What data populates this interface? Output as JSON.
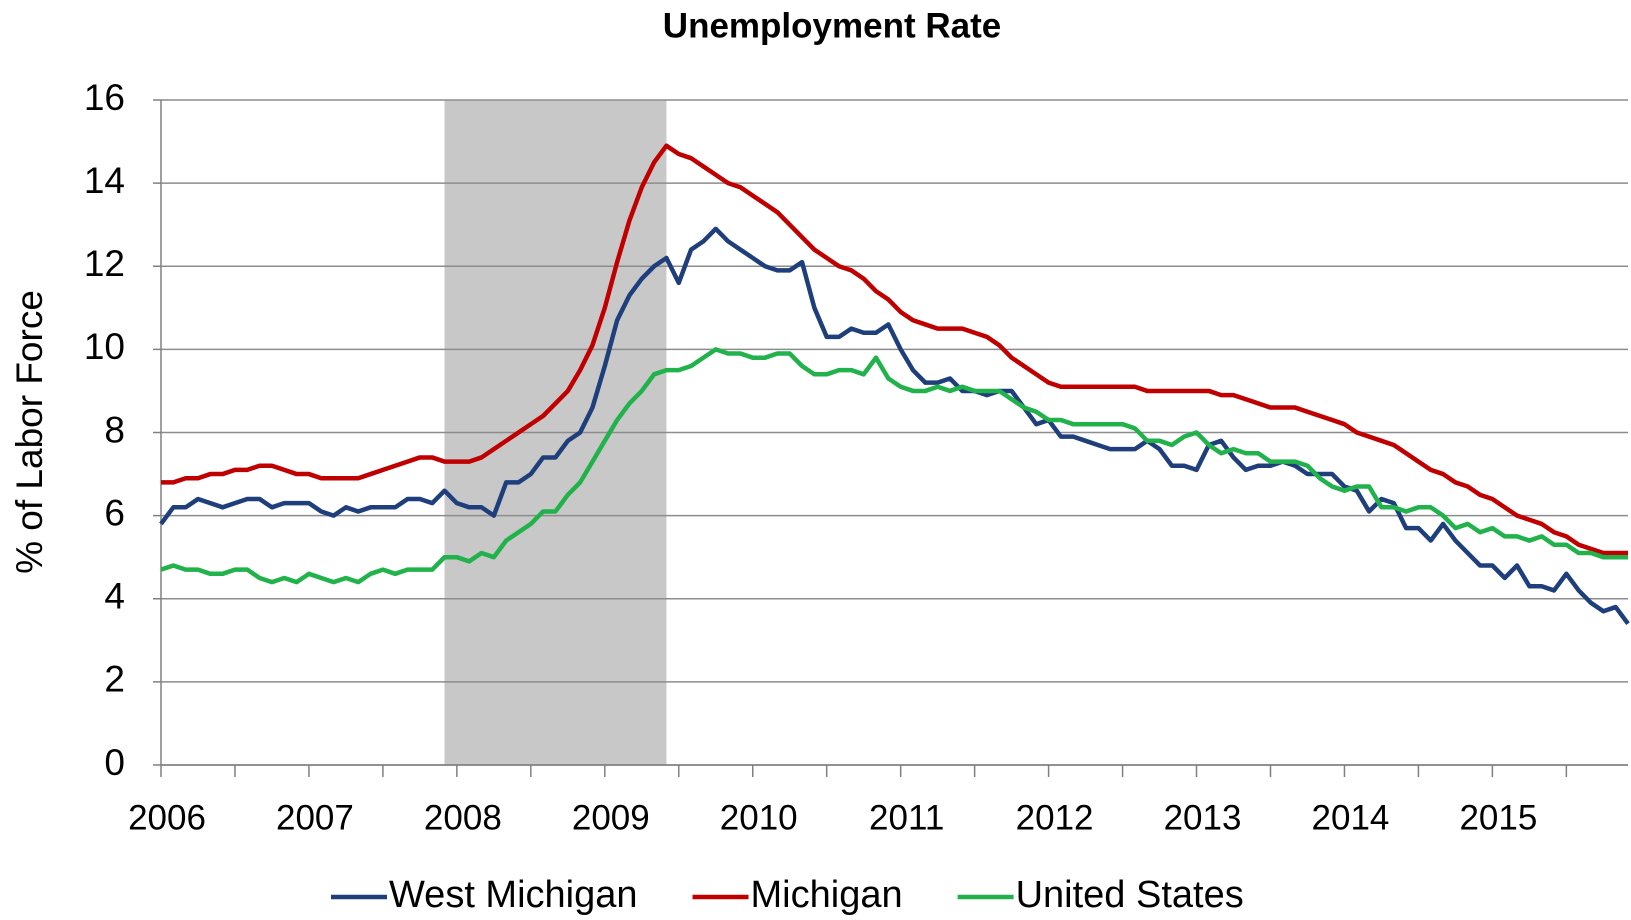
{
  "chart_data": {
    "type": "line",
    "title": "Unemployment Rate",
    "y_label": "% of Labor Force",
    "categories": [
      "2006",
      null,
      null,
      null,
      null,
      null,
      null,
      null,
      null,
      null,
      null,
      null,
      "2007",
      null,
      null,
      null,
      null,
      null,
      null,
      null,
      null,
      null,
      null,
      null,
      "2008",
      null,
      null,
      null,
      null,
      null,
      null,
      null,
      null,
      null,
      null,
      null,
      "2009",
      null,
      null,
      null,
      null,
      null,
      null,
      null,
      null,
      null,
      null,
      null,
      "2010",
      null,
      null,
      null,
      null,
      null,
      null,
      null,
      null,
      null,
      null,
      null,
      "2011",
      null,
      null,
      null,
      null,
      null,
      null,
      null,
      null,
      null,
      null,
      null,
      "2012",
      null,
      null,
      null,
      null,
      null,
      null,
      null,
      null,
      null,
      null,
      null,
      "2013",
      null,
      null,
      null,
      null,
      null,
      null,
      null,
      null,
      null,
      null,
      null,
      "2014",
      null,
      null,
      null,
      null,
      null,
      null,
      null,
      null,
      null,
      null,
      null,
      "2015",
      null,
      null,
      null,
      null,
      null,
      null,
      null,
      null,
      null,
      null,
      null
    ],
    "series": [
      {
        "name": "West Michigan",
        "color": "#1f3f7c",
        "values": [
          5.8,
          6.2,
          6.2,
          6.4,
          6.3,
          6.2,
          6.3,
          6.4,
          6.4,
          6.2,
          6.3,
          6.3,
          6.3,
          6.1,
          6.0,
          6.2,
          6.1,
          6.2,
          6.2,
          6.2,
          6.4,
          6.4,
          6.3,
          6.6,
          6.3,
          6.2,
          6.2,
          6.0,
          6.8,
          6.8,
          7.0,
          7.4,
          7.4,
          7.8,
          8.0,
          8.6,
          9.6,
          10.7,
          11.3,
          11.7,
          12.0,
          12.2,
          11.6,
          12.4,
          12.6,
          12.9,
          12.6,
          12.4,
          12.2,
          12.0,
          11.9,
          11.9,
          12.1,
          11.0,
          10.3,
          10.3,
          10.5,
          10.4,
          10.4,
          10.6,
          10.0,
          9.5,
          9.2,
          9.2,
          9.3,
          9.0,
          9.0,
          8.9,
          9.0,
          9.0,
          8.6,
          8.2,
          8.3,
          7.9,
          7.9,
          7.8,
          7.7,
          7.6,
          7.6,
          7.6,
          7.8,
          7.6,
          7.2,
          7.2,
          7.1,
          7.7,
          7.8,
          7.4,
          7.1,
          7.2,
          7.2,
          7.3,
          7.2,
          7.0,
          7.0,
          7.0,
          6.7,
          6.6,
          6.1,
          6.4,
          6.3,
          5.7,
          5.7,
          5.4,
          5.8,
          5.4,
          5.1,
          4.8,
          4.8,
          4.5,
          4.8,
          4.3,
          4.3,
          4.2,
          4.6,
          4.2,
          3.9,
          3.7,
          3.8,
          3.4
        ]
      },
      {
        "name": "Michigan",
        "color": "#c00000",
        "values": [
          6.8,
          6.8,
          6.9,
          6.9,
          7.0,
          7.0,
          7.1,
          7.1,
          7.2,
          7.2,
          7.1,
          7.0,
          7.0,
          6.9,
          6.9,
          6.9,
          6.9,
          7.0,
          7.1,
          7.2,
          7.3,
          7.4,
          7.4,
          7.3,
          7.3,
          7.3,
          7.4,
          7.6,
          7.8,
          8.0,
          8.2,
          8.4,
          8.7,
          9.0,
          9.5,
          10.1,
          11.0,
          12.1,
          13.1,
          13.9,
          14.5,
          14.9,
          14.7,
          14.6,
          14.4,
          14.2,
          14.0,
          13.9,
          13.7,
          13.5,
          13.3,
          13.0,
          12.7,
          12.4,
          12.2,
          12.0,
          11.9,
          11.7,
          11.4,
          11.2,
          10.9,
          10.7,
          10.6,
          10.5,
          10.5,
          10.5,
          10.4,
          10.3,
          10.1,
          9.8,
          9.6,
          9.4,
          9.2,
          9.1,
          9.1,
          9.1,
          9.1,
          9.1,
          9.1,
          9.1,
          9.0,
          9.0,
          9.0,
          9.0,
          9.0,
          9.0,
          8.9,
          8.9,
          8.8,
          8.7,
          8.6,
          8.6,
          8.6,
          8.5,
          8.4,
          8.3,
          8.2,
          8.0,
          7.9,
          7.8,
          7.7,
          7.5,
          7.3,
          7.1,
          7.0,
          6.8,
          6.7,
          6.5,
          6.4,
          6.2,
          6.0,
          5.9,
          5.8,
          5.6,
          5.5,
          5.3,
          5.2,
          5.1,
          5.1,
          5.1
        ]
      },
      {
        "name": "United States",
        "color": "#21b24b",
        "values": [
          4.7,
          4.8,
          4.7,
          4.7,
          4.6,
          4.6,
          4.7,
          4.7,
          4.5,
          4.4,
          4.5,
          4.4,
          4.6,
          4.5,
          4.4,
          4.5,
          4.4,
          4.6,
          4.7,
          4.6,
          4.7,
          4.7,
          4.7,
          5.0,
          5.0,
          4.9,
          5.1,
          5.0,
          5.4,
          5.6,
          5.8,
          6.1,
          6.1,
          6.5,
          6.8,
          7.3,
          7.8,
          8.3,
          8.7,
          9.0,
          9.4,
          9.5,
          9.5,
          9.6,
          9.8,
          10.0,
          9.9,
          9.9,
          9.8,
          9.8,
          9.9,
          9.9,
          9.6,
          9.4,
          9.4,
          9.5,
          9.5,
          9.4,
          9.8,
          9.3,
          9.1,
          9.0,
          9.0,
          9.1,
          9.0,
          9.1,
          9.0,
          9.0,
          9.0,
          8.8,
          8.6,
          8.5,
          8.3,
          8.3,
          8.2,
          8.2,
          8.2,
          8.2,
          8.2,
          8.1,
          7.8,
          7.8,
          7.7,
          7.9,
          8.0,
          7.7,
          7.5,
          7.6,
          7.5,
          7.5,
          7.3,
          7.3,
          7.3,
          7.2,
          6.9,
          6.7,
          6.6,
          6.7,
          6.7,
          6.2,
          6.2,
          6.1,
          6.2,
          6.2,
          6.0,
          5.7,
          5.8,
          5.6,
          5.7,
          5.5,
          5.5,
          5.4,
          5.5,
          5.3,
          5.3,
          5.1,
          5.1,
          5.0,
          5.0,
          5.0
        ]
      }
    ],
    "recession_band": {
      "start": 23,
      "end": 41,
      "color": "#c8c8c8"
    },
    "ylim": [
      0,
      16
    ],
    "yticks": [
      0,
      2,
      4,
      6,
      8,
      10,
      12,
      14,
      16
    ],
    "grid": true,
    "legend": "bottom"
  }
}
